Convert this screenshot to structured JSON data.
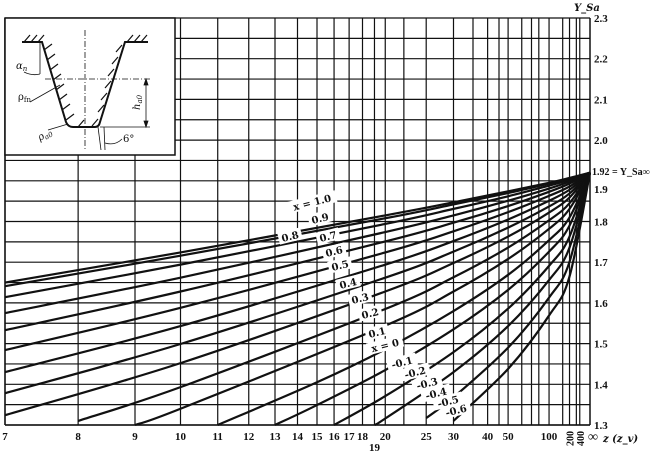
{
  "chart_data": {
    "type": "line",
    "title": "",
    "xlabel": "z (z_v)",
    "ylabel": "Y_Sa",
    "x_scale": "reciprocal",
    "ylim": [
      1.3,
      2.3
    ],
    "grid": true,
    "x_ticks": [
      "7",
      "8",
      "9",
      "10",
      "11",
      "12",
      "13",
      "14",
      "15",
      "16",
      "17",
      "18",
      "19",
      "20",
      "25",
      "30",
      "40",
      "50",
      "100",
      "200",
      "400",
      "∞"
    ],
    "x_tick_values": [
      7,
      8,
      9,
      10,
      11,
      12,
      13,
      14,
      15,
      16,
      17,
      18,
      19,
      20,
      25,
      30,
      40,
      50,
      100,
      200,
      400,
      null
    ],
    "x_grid_values": [
      7,
      8,
      9,
      10,
      11,
      12,
      13,
      14,
      15,
      16,
      17,
      18,
      19,
      20,
      22,
      25,
      30,
      35,
      40,
      45,
      50,
      60,
      70,
      80,
      100,
      150,
      200,
      300,
      400
    ],
    "y_ticks": [
      "2.3",
      "2.2",
      "2.1",
      "2.0",
      "1.9",
      "1.8",
      "1.7",
      "1.6",
      "1.5",
      "1.4",
      "1.3"
    ],
    "y_tick_values": [
      2.3,
      2.2,
      2.1,
      2.0,
      1.9,
      1.8,
      1.7,
      1.6,
      1.5,
      1.4,
      1.3
    ],
    "y_grid_step": 0.05,
    "limit_annotation": "1.92 = Y_Sa∞",
    "limit_value": 1.92,
    "series": [
      {
        "name": "x = 1.0",
        "points": [
          [
            7,
            1.65
          ],
          [
            10,
            1.724
          ],
          [
            20,
            1.815
          ],
          [
            30,
            1.847
          ],
          [
            50,
            1.874
          ],
          [
            100,
            1.895
          ],
          [
            200,
            1.907
          ]
        ]
      },
      {
        "name": "0.9",
        "points": [
          [
            7,
            1.641
          ],
          [
            10,
            1.716
          ],
          [
            20,
            1.808
          ],
          [
            30,
            1.842
          ],
          [
            50,
            1.87
          ],
          [
            100,
            1.893
          ],
          [
            200,
            1.905
          ]
        ]
      },
      {
        "name": "0.8",
        "points": [
          [
            7,
            1.614
          ],
          [
            10,
            1.694
          ],
          [
            20,
            1.794
          ],
          [
            30,
            1.831
          ],
          [
            50,
            1.862
          ],
          [
            100,
            1.888
          ],
          [
            200,
            1.902
          ]
        ]
      },
      {
        "name": "0.7",
        "points": [
          [
            7,
            1.575
          ],
          [
            10,
            1.662
          ],
          [
            20,
            1.774
          ],
          [
            30,
            1.815
          ],
          [
            50,
            1.851
          ],
          [
            100,
            1.881
          ],
          [
            200,
            1.898
          ]
        ]
      },
      {
        "name": "0.6",
        "points": [
          [
            7,
            1.533
          ],
          [
            10,
            1.628
          ],
          [
            20,
            1.751
          ],
          [
            30,
            1.797
          ],
          [
            50,
            1.838
          ],
          [
            100,
            1.873
          ],
          [
            200,
            1.893
          ]
        ]
      },
      {
        "name": "0.5",
        "points": [
          [
            7,
            1.484
          ],
          [
            10,
            1.588
          ],
          [
            20,
            1.724
          ],
          [
            30,
            1.776
          ],
          [
            50,
            1.823
          ],
          [
            100,
            1.863
          ],
          [
            200,
            1.886
          ]
        ]
      },
      {
        "name": "0.4",
        "points": [
          [
            7,
            1.43
          ],
          [
            10,
            1.543
          ],
          [
            20,
            1.694
          ],
          [
            30,
            1.752
          ],
          [
            50,
            1.805
          ],
          [
            100,
            1.851
          ],
          [
            200,
            1.878
          ]
        ]
      },
      {
        "name": "0.3",
        "points": [
          [
            7,
            1.378
          ],
          [
            10,
            1.499
          ],
          [
            20,
            1.662
          ],
          [
            30,
            1.726
          ],
          [
            50,
            1.785
          ],
          [
            100,
            1.837
          ],
          [
            200,
            1.869
          ]
        ]
      },
      {
        "name": "0.2",
        "points": [
          [
            7,
            1.324
          ],
          [
            10,
            1.452
          ],
          [
            20,
            1.628
          ],
          [
            30,
            1.698
          ],
          [
            50,
            1.763
          ],
          [
            100,
            1.822
          ],
          [
            200,
            1.859
          ]
        ]
      },
      {
        "name": "0.1",
        "points": [
          [
            8,
            1.31
          ],
          [
            10,
            1.393
          ],
          [
            20,
            1.585
          ],
          [
            30,
            1.663
          ],
          [
            50,
            1.736
          ],
          [
            100,
            1.803
          ],
          [
            200,
            1.845
          ]
        ]
      },
      {
        "name": "x = 0",
        "points": [
          [
            9,
            1.3
          ],
          [
            10,
            1.34
          ],
          [
            20,
            1.544
          ],
          [
            30,
            1.628
          ],
          [
            50,
            1.708
          ],
          [
            100,
            1.782
          ],
          [
            200,
            1.831
          ]
        ]
      },
      {
        "name": "-0.1",
        "points": [
          [
            11,
            1.3
          ],
          [
            15,
            1.405
          ],
          [
            20,
            1.486
          ],
          [
            30,
            1.58
          ],
          [
            50,
            1.669
          ],
          [
            100,
            1.754
          ],
          [
            200,
            1.81
          ]
        ]
      },
      {
        "name": "-0.2",
        "points": [
          [
            13,
            1.3
          ],
          [
            15,
            1.349
          ],
          [
            20,
            1.435
          ],
          [
            30,
            1.535
          ],
          [
            50,
            1.632
          ],
          [
            100,
            1.726
          ],
          [
            200,
            1.79
          ]
        ]
      },
      {
        "name": "-0.3",
        "points": [
          [
            16,
            1.3
          ],
          [
            20,
            1.371
          ],
          [
            30,
            1.479
          ],
          [
            50,
            1.586
          ],
          [
            100,
            1.691
          ],
          [
            200,
            1.763
          ]
        ]
      },
      {
        "name": "-0.4",
        "points": [
          [
            19,
            1.3
          ],
          [
            20,
            1.316
          ],
          [
            30,
            1.43
          ],
          [
            50,
            1.543
          ],
          [
            100,
            1.656
          ],
          [
            200,
            1.736
          ]
        ]
      },
      {
        "name": "-0.5",
        "points": [
          [
            25,
            1.317
          ],
          [
            30,
            1.368
          ],
          [
            50,
            1.49
          ],
          [
            100,
            1.613
          ],
          [
            200,
            1.701
          ]
        ]
      },
      {
        "name": "-0.6",
        "points": [
          [
            30,
            1.31
          ],
          [
            50,
            1.438
          ],
          [
            100,
            1.569
          ],
          [
            200,
            1.665
          ]
        ]
      }
    ]
  },
  "inset": {
    "alpha_label": "α",
    "alpha_sub": "n",
    "rho_f_label": "ρ",
    "rho_f_sub": "fn",
    "rho_a_label": "ρ",
    "rho_a_sub": "a0",
    "h_label": "h",
    "h_sub": "a0",
    "angle_label": "6°"
  },
  "colors": {
    "ink": "#111111",
    "background": "#ffffff"
  }
}
